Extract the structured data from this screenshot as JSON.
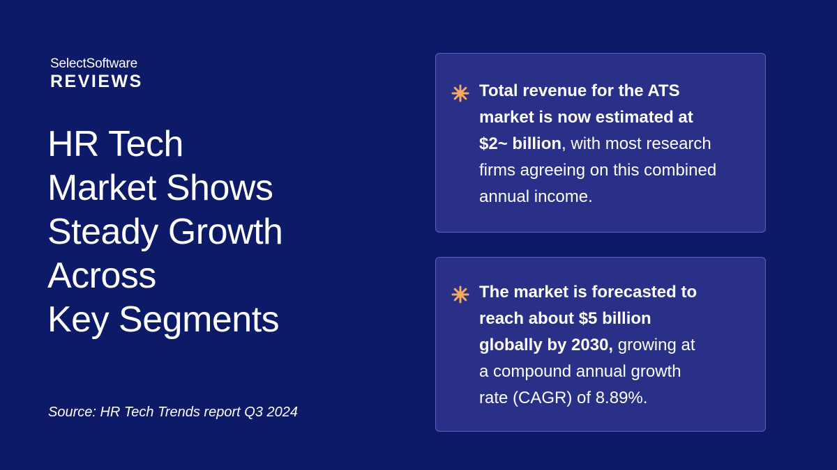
{
  "brand": {
    "top": "SelectSoftware",
    "bottom": "REVIEWS"
  },
  "headline_lines": [
    "HR Tech",
    "Market Shows",
    "Steady Growth",
    "Across",
    "Key Segments"
  ],
  "source": "Source: HR Tech Trends report Q3 2024",
  "cards": [
    {
      "icon": "starburst-icon",
      "lines": [
        {
          "bold": "Total revenue for the ATS",
          "normal": ""
        },
        {
          "bold": "market is now estimated at",
          "normal": ""
        },
        {
          "bold": "$2~ billion",
          "normal": ", with most research"
        },
        {
          "bold": "",
          "normal": "firms agreeing on this combined"
        },
        {
          "bold": "",
          "normal": "annual income."
        }
      ]
    },
    {
      "icon": "starburst-icon",
      "lines": [
        {
          "bold": "The market is forecasted to",
          "normal": ""
        },
        {
          "bold": "reach about $5 billion",
          "normal": ""
        },
        {
          "bold": "globally by 2030,",
          "normal": " growing at"
        },
        {
          "bold": "",
          "normal": "a compound annual growth"
        },
        {
          "bold": "",
          "normal": "rate (CAGR) of 8.89%."
        }
      ]
    }
  ],
  "colors": {
    "background": "#0c1a68",
    "card_background": "#2a2f87",
    "card_border": "#5a60b8",
    "star": "#f4a95c",
    "text": "#ffffff"
  }
}
